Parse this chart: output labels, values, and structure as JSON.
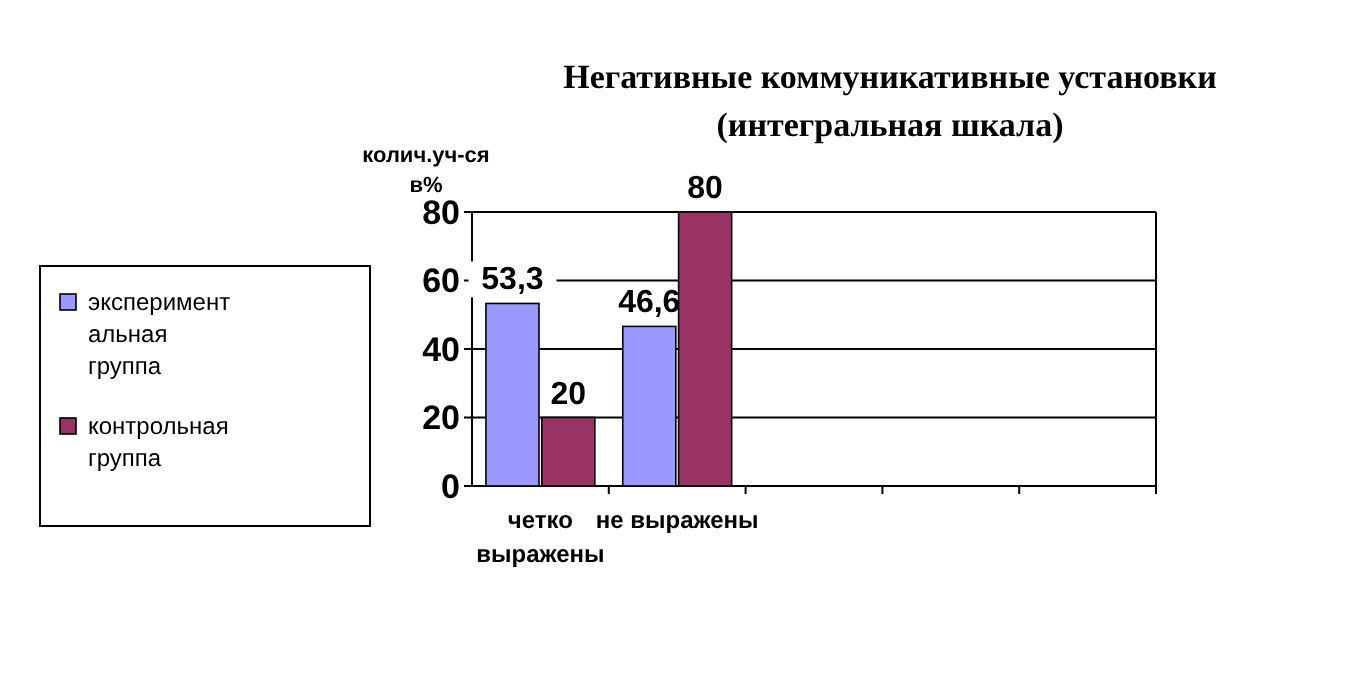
{
  "chart_data": {
    "type": "bar",
    "title": "Негативные коммуникативные установки (интегральная шкала)",
    "ylabel": "колич.уч-ся в%",
    "categories": [
      "четко выражены",
      "не выражены",
      null,
      null,
      null
    ],
    "series": [
      {
        "name": "экспериментальная группа",
        "color": "#9999ff",
        "values": [
          53.3,
          46.6,
          null,
          null,
          null
        ],
        "value_labels": [
          "53,3",
          "46,6",
          null,
          null,
          null
        ]
      },
      {
        "name": "контрольная группа",
        "color": "#993366",
        "values": [
          20,
          80,
          null,
          null,
          null
        ],
        "value_labels": [
          "20",
          "80",
          null,
          null,
          null
        ]
      }
    ],
    "ylim": [
      0,
      80
    ],
    "yticks": [
      0,
      20,
      40,
      60,
      80
    ],
    "grid": "y",
    "legend": "left"
  }
}
